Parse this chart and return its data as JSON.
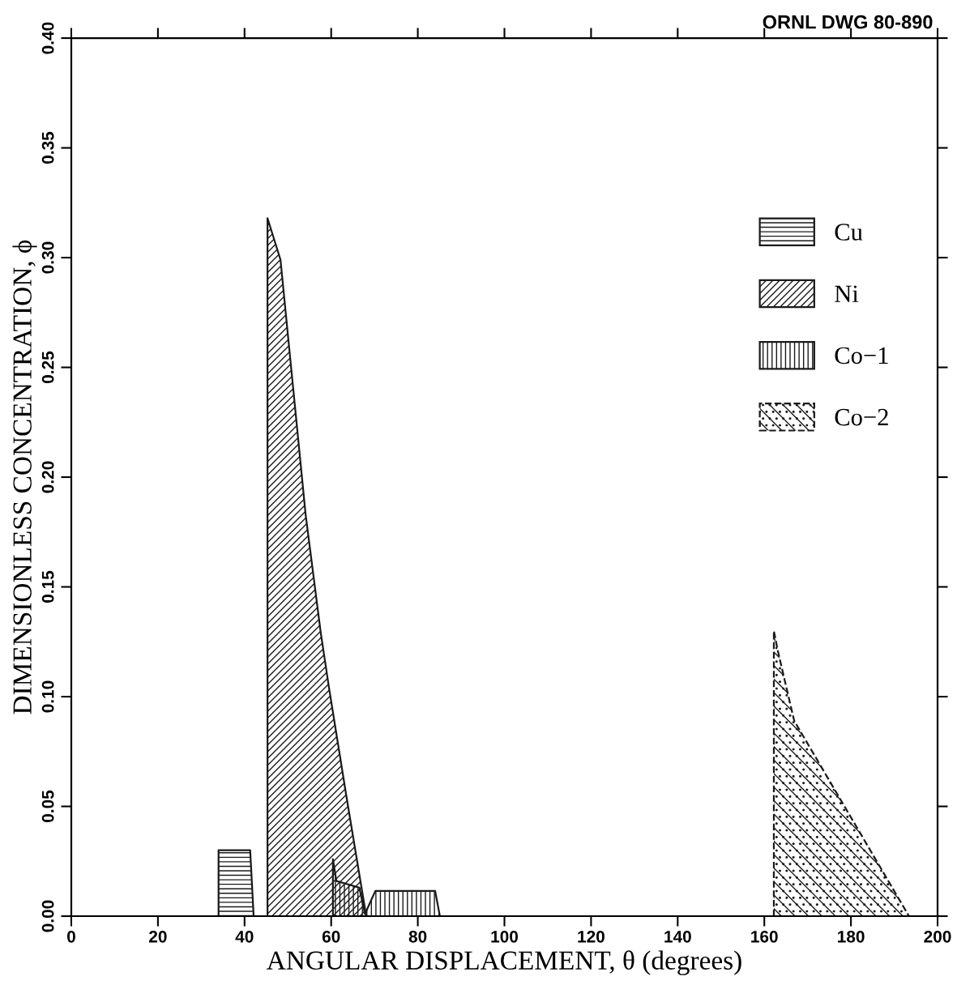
{
  "chart_data": {
    "type": "area",
    "xlabel": "ANGULAR DISPLACEMENT, θ (degrees)",
    "ylabel": "DIMENSIONLESS CONCENTRATION, ϕ",
    "annotations": [
      "ORNL DWG 80-890"
    ],
    "xlim": [
      0,
      200
    ],
    "xticks": [
      0,
      20,
      40,
      60,
      80,
      100,
      120,
      140,
      160,
      180,
      200
    ],
    "ylim": [
      0,
      0.4
    ],
    "yticks": [
      {
        "value": 0,
        "label": "0.00"
      },
      {
        "value": 0.05,
        "label": "0.05"
      },
      {
        "value": 0.1,
        "label": "0.10"
      },
      {
        "value": 0.15,
        "label": "0.15"
      },
      {
        "value": 0.2,
        "label": "0.20"
      },
      {
        "value": 0.25,
        "label": "0.25"
      },
      {
        "value": 0.3,
        "label": "0.30"
      },
      {
        "value": 0.35,
        "label": "0.35"
      },
      {
        "value": 0.4,
        "label": "0.40"
      }
    ],
    "legend": "upper right",
    "grid": false,
    "series": [
      {
        "name": "Cu",
        "color": "#1a1a1a",
        "x": [
          34,
          34,
          41.3,
          42.1
        ],
        "values": [
          0,
          0.03,
          0.03,
          0
        ]
      },
      {
        "name": "Ni",
        "color": "#1a1a1a",
        "x": [
          45.3,
          45.3,
          48.3,
          51.1,
          54.1,
          57.6,
          59.5,
          63.4,
          67.0,
          68.1
        ],
        "values": [
          0,
          0.318,
          0.299,
          0.243,
          0.183,
          0.129,
          0.104,
          0.056,
          0.013,
          0
        ]
      },
      {
        "name": "Co−1",
        "color": "#1a1a1a",
        "x": [
          60.4,
          60.4,
          61.2,
          66.5,
          67.8,
          70.2,
          84.0,
          85.1
        ],
        "values": [
          0,
          0.026,
          0.016,
          0.013,
          0.001,
          0.0115,
          0.0115,
          0
        ]
      },
      {
        "name": "Co−2",
        "color": "#1a1a1a",
        "x": [
          162.2,
          162.2,
          163.1,
          166.9,
          193.4
        ],
        "values": [
          0,
          0.13,
          0.121,
          0.089,
          0
        ]
      }
    ]
  }
}
